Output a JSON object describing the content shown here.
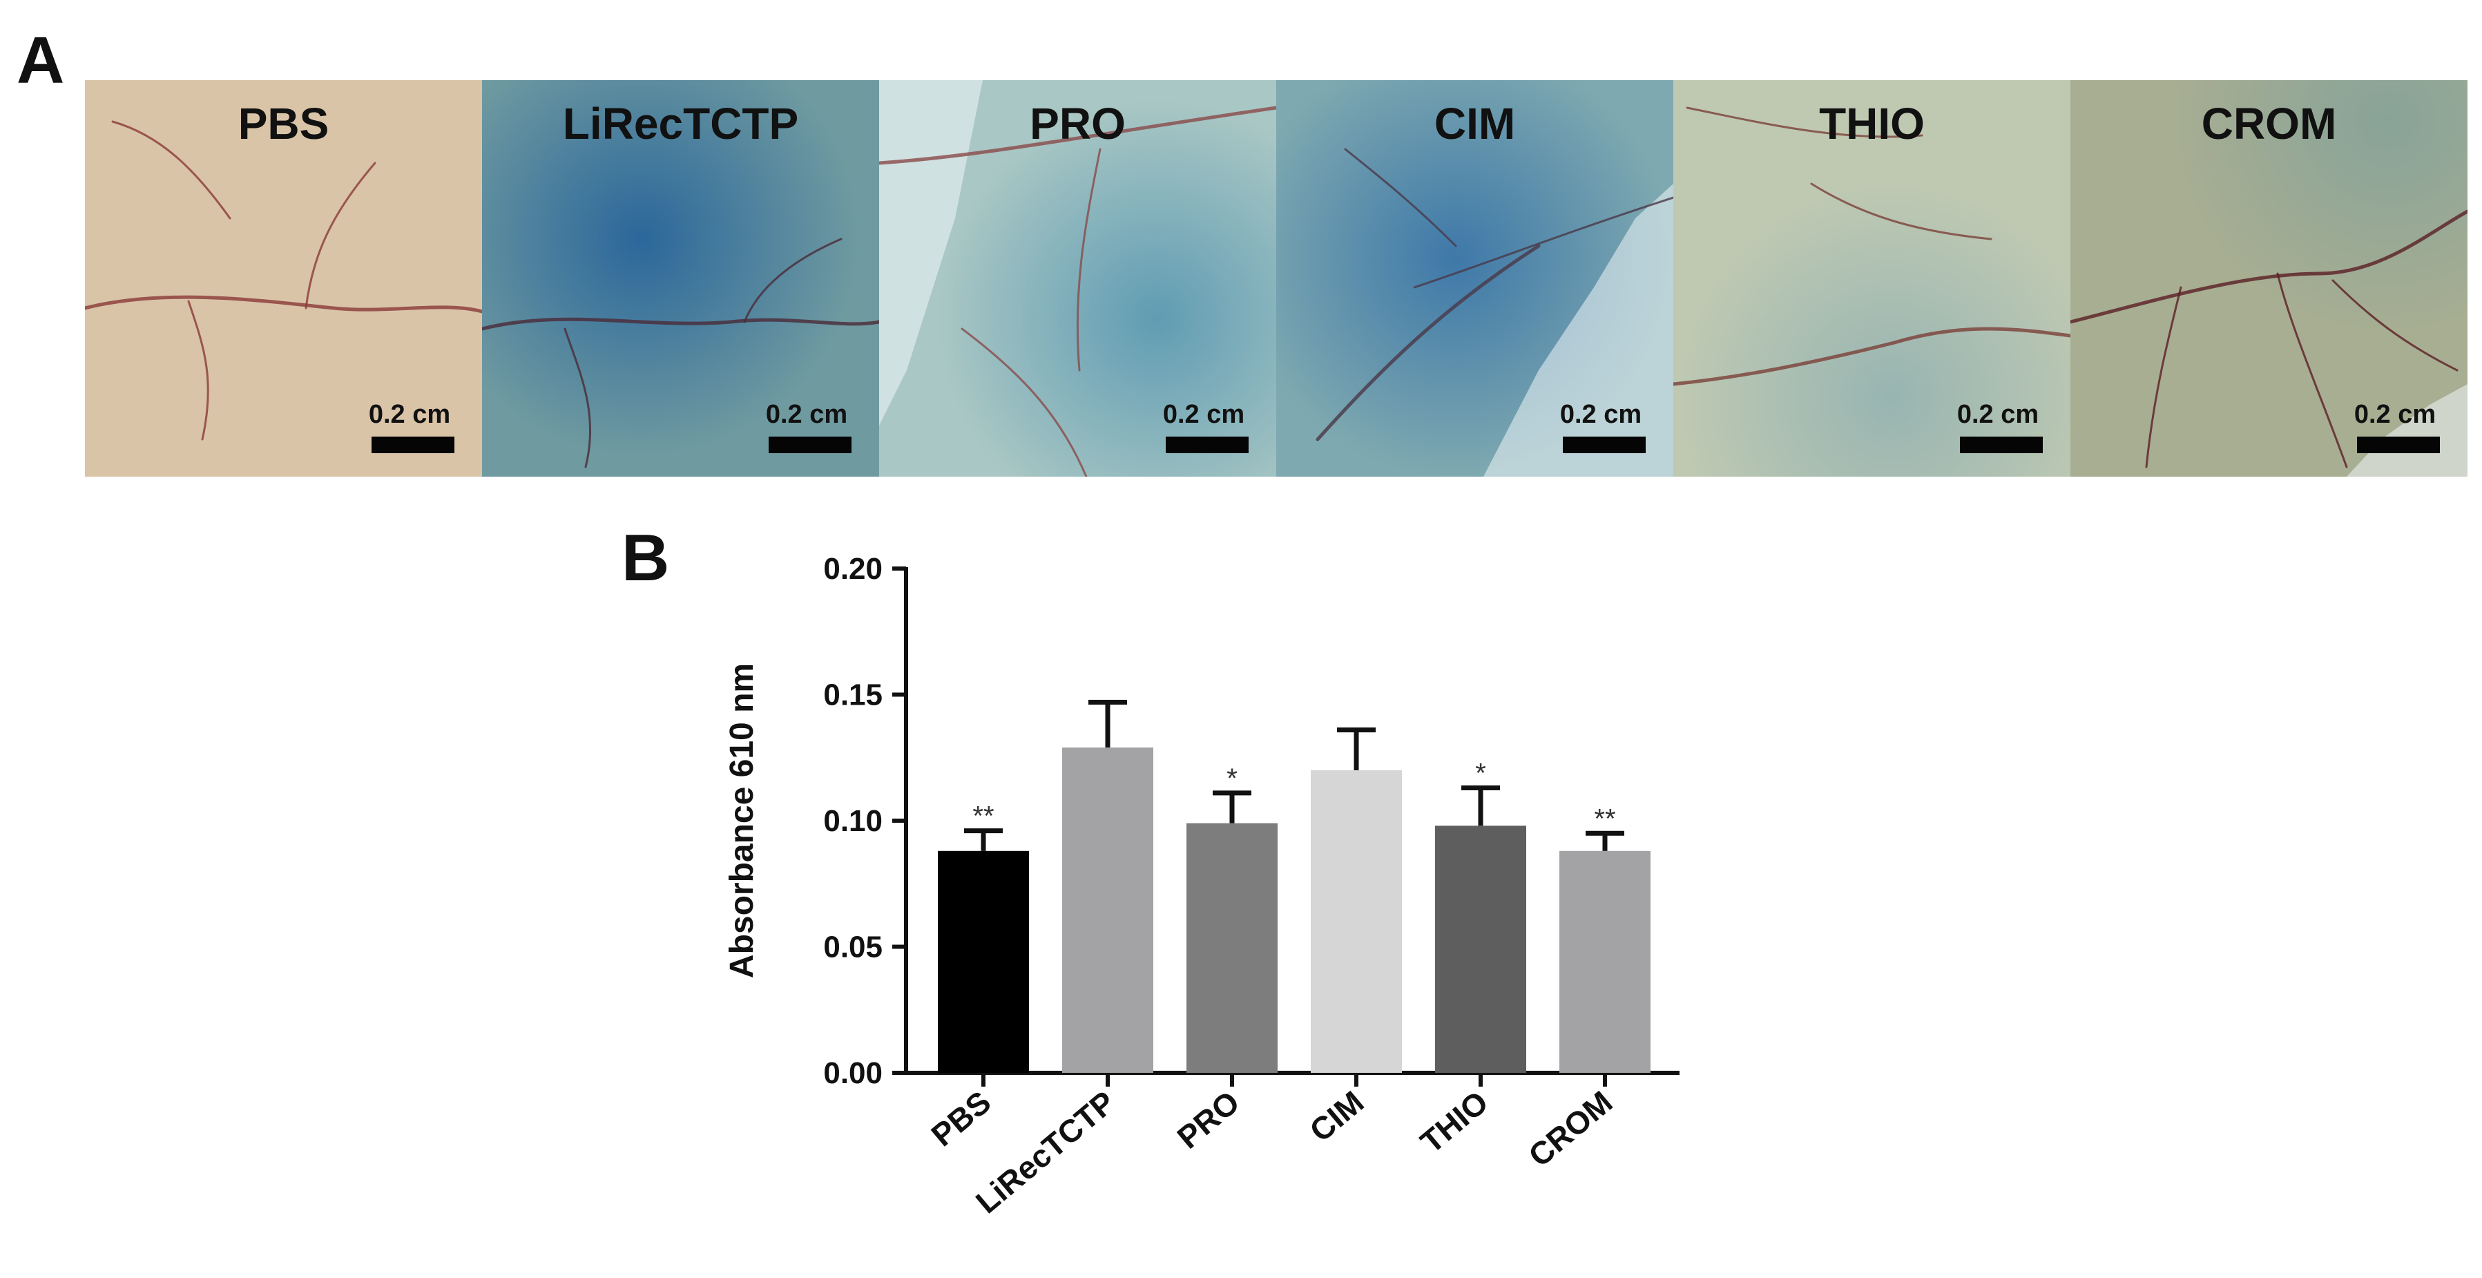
{
  "panel_a": {
    "letter": "A",
    "photos": [
      {
        "label": "PBS",
        "scale": "0.2 cm",
        "tint": "#d9c4a8",
        "stain": "#c6b39a",
        "stain_opacity": 0.0,
        "vein": "#8a3a36"
      },
      {
        "label": "LiRecTCTP",
        "scale": "0.2 cm",
        "tint": "#6f9aa0",
        "stain": "#1f5e9a",
        "stain_opacity": 0.85,
        "vein": "#4a2a38"
      },
      {
        "label": "PRO",
        "scale": "0.2 cm",
        "tint": "#a9c7c4",
        "stain": "#2f7fa8",
        "stain_opacity": 0.6,
        "vein": "#8a4a4a"
      },
      {
        "label": "CIM",
        "scale": "0.2 cm",
        "tint": "#7fa9b0",
        "stain": "#2868a6",
        "stain_opacity": 0.75,
        "vein": "#4a3848"
      },
      {
        "label": "THIO",
        "scale": "0.2 cm",
        "tint": "#bfc9b2",
        "stain": "#4f8fb0",
        "stain_opacity": 0.35,
        "vein": "#7a4038"
      },
      {
        "label": "CROM",
        "scale": "0.2 cm",
        "tint": "#a8ae92",
        "stain": "#3f8aa8",
        "stain_opacity": 0.3,
        "vein": "#5a1e24"
      }
    ]
  },
  "panel_b": {
    "letter": "B"
  },
  "chart_data": {
    "type": "bar",
    "title": "",
    "xlabel": "",
    "ylabel": "Absorbance 610 nm",
    "ylim": [
      0,
      0.2
    ],
    "yticks": [
      0.0,
      0.05,
      0.1,
      0.15,
      0.2
    ],
    "ytick_labels": [
      "0.00",
      "0.05",
      "0.10",
      "0.15",
      "0.20"
    ],
    "categories": [
      "PBS",
      "LiRecTCTP",
      "PRO",
      "CIM",
      "THIO",
      "CROM"
    ],
    "values": [
      0.088,
      0.129,
      0.099,
      0.12,
      0.098,
      0.088
    ],
    "errors": [
      0.008,
      0.018,
      0.012,
      0.016,
      0.015,
      0.007
    ],
    "significance": [
      "**",
      "",
      "*",
      "",
      "*",
      "**"
    ],
    "colors": [
      "#000000",
      "#a3a3a6",
      "#7d7d7d",
      "#d6d6d6",
      "#5e5e5e",
      "#a3a3a6"
    ],
    "grid": false
  }
}
